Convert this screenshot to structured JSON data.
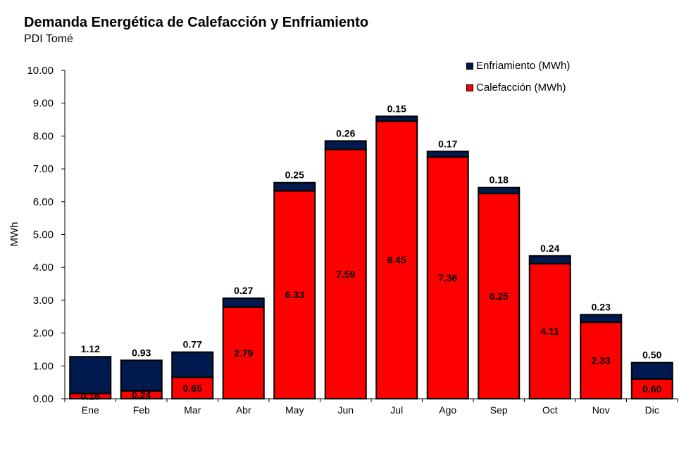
{
  "chart_data": {
    "type": "bar",
    "stacked": true,
    "title": "Demanda Energética de Calefacción y Enfriamiento",
    "subtitle": "PDI Tomé",
    "xlabel": "",
    "ylabel": "MWh",
    "ylim": [
      0,
      10
    ],
    "yticks": [
      "0.00",
      "1.00",
      "2.00",
      "3.00",
      "4.00",
      "5.00",
      "6.00",
      "7.00",
      "8.00",
      "9.00",
      "10.00"
    ],
    "grid": false,
    "legend_position": "top-right",
    "categories": [
      "Ene",
      "Feb",
      "Mar",
      "Abr",
      "May",
      "Jun",
      "Jul",
      "Ago",
      "Sep",
      "Oct",
      "Nov",
      "Dic"
    ],
    "series": [
      {
        "name": "Calefacción (MWh)",
        "color": "#FF0000",
        "values": [
          0.16,
          0.24,
          0.65,
          2.79,
          6.33,
          7.59,
          8.45,
          7.36,
          6.25,
          4.11,
          2.33,
          0.6
        ]
      },
      {
        "name": "Enfriamiento (MWh)",
        "color": "#001A4F",
        "values": [
          1.12,
          0.93,
          0.77,
          0.27,
          0.25,
          0.26,
          0.15,
          0.17,
          0.18,
          0.24,
          0.23,
          0.5
        ]
      }
    ],
    "legend": [
      "Enfriamiento (MWh)",
      "Calefacción (MWh)"
    ]
  }
}
